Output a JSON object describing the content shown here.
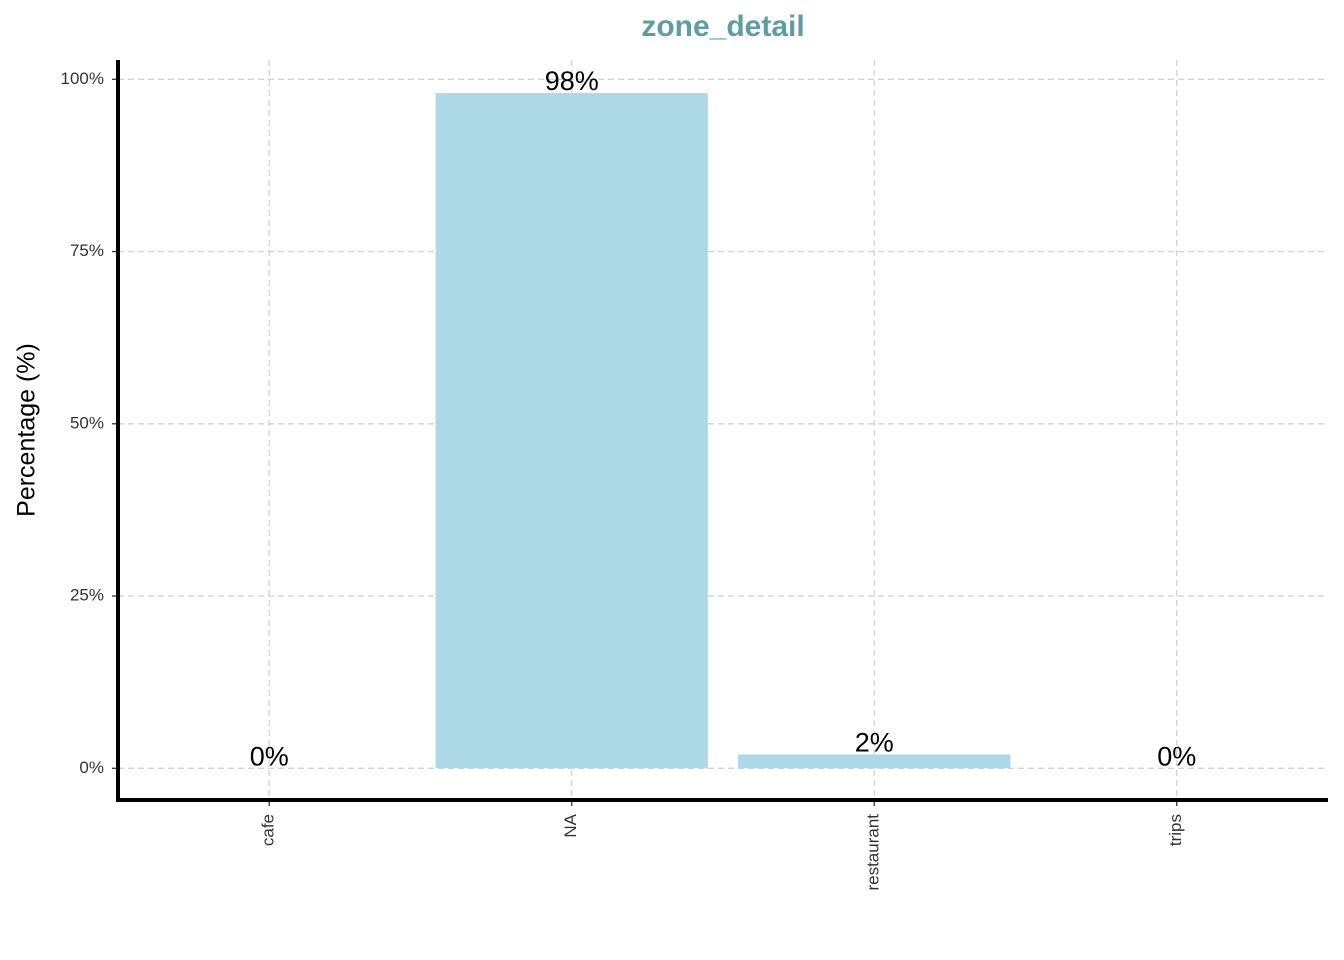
{
  "chart_data": {
    "type": "bar",
    "title": "zone_detail",
    "y_label": "Percentage (%)",
    "categories": [
      "cafe",
      "NA",
      "restaurant",
      "trips"
    ],
    "values": [
      0,
      98,
      2,
      0
    ],
    "value_labels": [
      "0%",
      "98%",
      "2%",
      "0%"
    ],
    "color": "#add8e6",
    "title_color": "#5f9ea0",
    "ylim": [
      -4.6,
      102.8
    ],
    "yticks": [
      {
        "value": 0,
        "label": "0%"
      },
      {
        "value": 25,
        "label": "25%"
      },
      {
        "value": 50,
        "label": "50%"
      },
      {
        "value": 75,
        "label": "75%"
      },
      {
        "value": 100,
        "label": "100%"
      }
    ],
    "grid": true
  }
}
